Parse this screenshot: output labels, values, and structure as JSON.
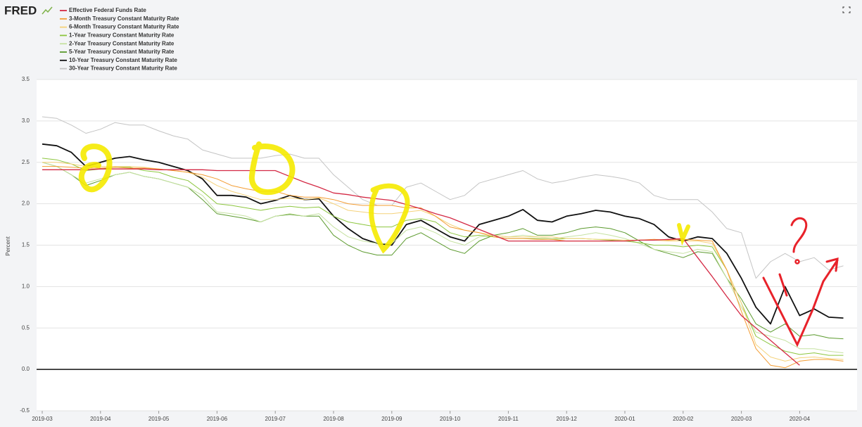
{
  "brand": "FRED",
  "chart_data": {
    "type": "line",
    "y_label": "Percent",
    "categories": [
      "2019-03",
      null,
      null,
      null,
      "2019-04",
      null,
      null,
      null,
      "2019-05",
      null,
      null,
      null,
      "2019-06",
      null,
      null,
      null,
      "2019-07",
      null,
      null,
      null,
      "2019-08",
      null,
      null,
      null,
      "2019-09",
      null,
      null,
      null,
      "2019-10",
      null,
      null,
      null,
      "2019-11",
      null,
      null,
      null,
      "2019-12",
      null,
      null,
      null,
      "2020-01",
      null,
      null,
      null,
      "2020-02",
      null,
      null,
      null,
      "2020-03",
      null,
      null,
      null,
      "2020-04",
      null,
      null,
      null
    ],
    "ylim": [
      -0.5,
      3.5
    ],
    "yticks": [
      -0.5,
      {
        "value": 0,
        "label": "0.0"
      },
      0.5,
      {
        "value": 1,
        "label": "1.0"
      },
      1.5,
      {
        "value": 2,
        "label": "2.0"
      },
      2.5,
      {
        "value": 3,
        "label": "3.0"
      },
      3.5
    ],
    "grid": true,
    "legend": "top-left",
    "series": [
      {
        "name": "Effective Federal Funds Rate",
        "color": "#d42a45",
        "width": 1.3,
        "values": [
          2.41,
          2.41,
          2.41,
          2.41,
          2.42,
          2.42,
          2.42,
          2.42,
          2.41,
          2.41,
          2.41,
          2.41,
          2.4,
          2.4,
          2.4,
          2.4,
          2.4,
          2.33,
          2.26,
          2.2,
          2.13,
          2.11,
          2.08,
          2.06,
          2.04,
          1.99,
          1.94,
          1.88,
          1.83,
          1.76,
          1.69,
          1.62,
          1.55,
          1.55,
          1.55,
          1.55,
          1.55,
          1.55,
          1.55,
          1.55,
          1.55,
          1.56,
          1.56,
          1.57,
          1.58,
          1.35,
          1.12,
          0.88,
          0.65,
          0.5,
          0.35,
          0.2,
          0.05,
          null,
          null,
          null
        ]
      },
      {
        "name": "3-Month Treasury Constant Maturity Rate",
        "color": "#f39c32",
        "width": 1,
        "values": [
          2.45,
          2.45,
          2.44,
          2.43,
          2.43,
          2.44,
          2.43,
          2.43,
          2.42,
          2.4,
          2.38,
          2.35,
          2.3,
          2.22,
          2.18,
          2.15,
          2.15,
          2.1,
          2.08,
          2.08,
          2.05,
          2.0,
          1.98,
          1.98,
          1.98,
          1.95,
          1.95,
          1.85,
          1.72,
          1.68,
          1.65,
          1.6,
          1.58,
          1.58,
          1.57,
          1.57,
          1.55,
          1.55,
          1.55,
          1.55,
          1.55,
          1.56,
          1.57,
          1.56,
          1.57,
          1.56,
          1.55,
          1.2,
          0.7,
          0.25,
          0.05,
          0.02,
          0.1,
          0.12,
          0.12,
          0.1
        ]
      },
      {
        "name": "6-Month Treasury Constant Maturity Rate",
        "color": "#f5d27a",
        "width": 1,
        "values": [
          2.5,
          2.5,
          2.48,
          2.45,
          2.45,
          2.45,
          2.45,
          2.44,
          2.42,
          2.4,
          2.38,
          2.32,
          2.22,
          2.15,
          2.1,
          2.05,
          2.05,
          2.07,
          2.05,
          2.07,
          2.0,
          1.92,
          1.9,
          1.88,
          1.88,
          1.9,
          1.92,
          1.85,
          1.75,
          1.68,
          1.65,
          1.62,
          1.6,
          1.6,
          1.6,
          1.6,
          1.58,
          1.58,
          1.57,
          1.57,
          1.56,
          1.56,
          1.56,
          1.55,
          1.55,
          1.55,
          1.52,
          1.2,
          0.8,
          0.3,
          0.15,
          0.1,
          0.14,
          0.15,
          0.13,
          0.12
        ]
      },
      {
        "name": "1-Year Treasury Constant Maturity Rate",
        "color": "#8dc63f",
        "width": 1,
        "values": [
          2.55,
          2.53,
          2.48,
          2.4,
          2.42,
          2.44,
          2.44,
          2.4,
          2.38,
          2.32,
          2.28,
          2.15,
          2.0,
          1.98,
          1.95,
          1.92,
          1.95,
          1.97,
          1.95,
          1.96,
          1.85,
          1.78,
          1.75,
          1.72,
          1.72,
          1.8,
          1.82,
          1.78,
          1.65,
          1.6,
          1.62,
          1.6,
          1.58,
          1.58,
          1.58,
          1.57,
          1.58,
          1.58,
          1.57,
          1.56,
          1.55,
          1.53,
          1.5,
          1.5,
          1.48,
          1.5,
          1.48,
          1.2,
          0.8,
          0.4,
          0.3,
          0.22,
          0.18,
          0.2,
          0.17,
          0.17
        ]
      },
      {
        "name": "2-Year Treasury Constant Maturity Rate",
        "color": "#c6e2a2",
        "width": 1,
        "values": [
          2.5,
          2.45,
          2.35,
          2.25,
          2.3,
          2.35,
          2.38,
          2.33,
          2.3,
          2.25,
          2.2,
          2.1,
          1.9,
          1.88,
          1.85,
          1.78,
          1.85,
          1.88,
          1.85,
          1.88,
          1.72,
          1.6,
          1.55,
          1.52,
          1.52,
          1.68,
          1.72,
          1.65,
          1.55,
          1.5,
          1.6,
          1.62,
          1.6,
          1.62,
          1.6,
          1.58,
          1.6,
          1.62,
          1.65,
          1.62,
          1.58,
          1.52,
          1.45,
          1.42,
          1.4,
          1.45,
          1.42,
          1.1,
          0.75,
          0.45,
          0.4,
          0.35,
          0.25,
          0.25,
          0.22,
          0.2
        ]
      },
      {
        "name": "5-Year Treasury Constant Maturity Rate",
        "color": "#5b9a2d",
        "width": 1,
        "values": [
          2.5,
          2.45,
          2.35,
          2.22,
          2.28,
          2.35,
          2.38,
          2.33,
          2.3,
          2.25,
          2.2,
          2.05,
          1.88,
          1.85,
          1.82,
          1.78,
          1.85,
          1.87,
          1.85,
          1.85,
          1.62,
          1.5,
          1.42,
          1.38,
          1.38,
          1.58,
          1.65,
          1.55,
          1.45,
          1.4,
          1.55,
          1.62,
          1.65,
          1.7,
          1.62,
          1.62,
          1.65,
          1.7,
          1.72,
          1.7,
          1.65,
          1.55,
          1.45,
          1.4,
          1.35,
          1.42,
          1.4,
          1.1,
          0.85,
          0.55,
          0.45,
          0.55,
          0.4,
          0.42,
          0.38,
          0.37
        ]
      },
      {
        "name": "10-Year Treasury Constant Maturity Rate",
        "color": "#111111",
        "width": 1.8,
        "values": [
          2.72,
          2.7,
          2.62,
          2.45,
          2.5,
          2.55,
          2.57,
          2.53,
          2.5,
          2.45,
          2.4,
          2.3,
          2.1,
          2.1,
          2.08,
          2.0,
          2.04,
          2.1,
          2.05,
          2.06,
          1.85,
          1.7,
          1.58,
          1.52,
          1.5,
          1.75,
          1.8,
          1.7,
          1.6,
          1.55,
          1.75,
          1.8,
          1.85,
          1.93,
          1.8,
          1.78,
          1.85,
          1.88,
          1.92,
          1.9,
          1.85,
          1.82,
          1.75,
          1.6,
          1.55,
          1.6,
          1.58,
          1.4,
          1.1,
          0.75,
          0.55,
          1.0,
          0.65,
          0.73,
          0.63,
          0.62
        ]
      },
      {
        "name": "30-Year Treasury Constant Maturity Rate",
        "color": "#c4c4c4",
        "width": 1,
        "values": [
          3.05,
          3.03,
          2.95,
          2.85,
          2.9,
          2.98,
          2.95,
          2.95,
          2.88,
          2.82,
          2.78,
          2.65,
          2.6,
          2.55,
          2.55,
          2.55,
          2.58,
          2.6,
          2.55,
          2.55,
          2.35,
          2.2,
          2.05,
          1.98,
          1.98,
          2.2,
          2.25,
          2.15,
          2.05,
          2.1,
          2.25,
          2.3,
          2.35,
          2.4,
          2.3,
          2.25,
          2.28,
          2.32,
          2.35,
          2.33,
          2.3,
          2.25,
          2.1,
          2.05,
          2.05,
          2.05,
          1.9,
          1.7,
          1.65,
          1.1,
          1.3,
          1.4,
          1.3,
          1.35,
          1.2,
          1.25
        ]
      }
    ]
  }
}
